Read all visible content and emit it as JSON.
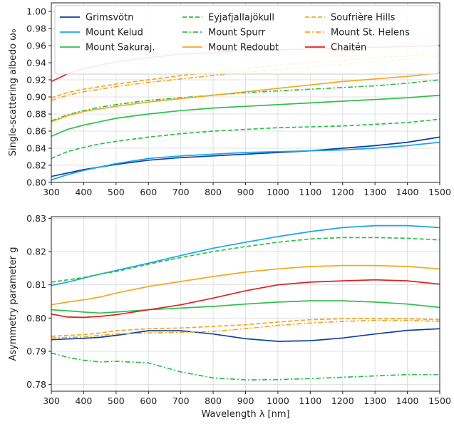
{
  "chart_data": [
    {
      "type": "line",
      "title": "",
      "xlabel": "",
      "ylabel": "Single-scattering albedo ω₀",
      "xlim": [
        300,
        1500
      ],
      "ylim": [
        0.8,
        1.01
      ],
      "xticks": [
        "300",
        "400",
        "500",
        "600",
        "700",
        "800",
        "900",
        "1000",
        "1100",
        "1200",
        "1300",
        "1400",
        "1500"
      ],
      "yticks": [
        "0.80",
        "0.82",
        "0.84",
        "0.86",
        "0.88",
        "0.90",
        "0.92",
        "0.94",
        "0.96",
        "0.98",
        "1.00"
      ],
      "grid": true,
      "legend": {
        "placement": "top",
        "columns": 3
      },
      "x": [
        300,
        350,
        400,
        450,
        500,
        600,
        700,
        800,
        900,
        1000,
        1100,
        1200,
        1300,
        1400,
        1500
      ],
      "series": [
        {
          "name": "Grimsvötn",
          "color": "#0b3ea6",
          "dash": "solid",
          "values": [
            0.807,
            0.811,
            0.815,
            0.818,
            0.821,
            0.826,
            0.829,
            0.831,
            0.833,
            0.835,
            0.837,
            0.84,
            0.843,
            0.847,
            0.853
          ]
        },
        {
          "name": "Mount Kelud",
          "color": "#1aa6e6",
          "dash": "solid",
          "values": [
            0.803,
            0.809,
            0.814,
            0.818,
            0.822,
            0.828,
            0.831,
            0.833,
            0.835,
            0.836,
            0.837,
            0.838,
            0.84,
            0.843,
            0.847
          ]
        },
        {
          "name": "Mount Sakuraj.",
          "color": "#2cbf4a",
          "dash": "solid",
          "values": [
            0.854,
            0.862,
            0.867,
            0.871,
            0.875,
            0.88,
            0.884,
            0.887,
            0.889,
            0.891,
            0.893,
            0.895,
            0.897,
            0.899,
            0.902
          ]
        },
        {
          "name": "Eyjafjallajökull",
          "color": "#2cbf4a",
          "dash": "dashed",
          "values": [
            0.828,
            0.836,
            0.841,
            0.845,
            0.848,
            0.853,
            0.857,
            0.86,
            0.862,
            0.864,
            0.865,
            0.866,
            0.868,
            0.87,
            0.874
          ]
        },
        {
          "name": "Mount Spurr",
          "color": "#2cbf4a",
          "dash": "dashdot",
          "values": [
            0.872,
            0.879,
            0.884,
            0.888,
            0.891,
            0.896,
            0.899,
            0.902,
            0.905,
            0.907,
            0.909,
            0.911,
            0.913,
            0.916,
            0.92
          ]
        },
        {
          "name": "Mount Redoubt",
          "color": "#f4a81d",
          "dash": "solid",
          "values": [
            0.871,
            0.878,
            0.883,
            0.886,
            0.889,
            0.894,
            0.898,
            0.902,
            0.906,
            0.91,
            0.914,
            0.918,
            0.921,
            0.924,
            0.928
          ]
        },
        {
          "name": "Soufrière Hills",
          "color": "#f4a81d",
          "dash": "dashed",
          "values": [
            0.899,
            0.905,
            0.909,
            0.912,
            0.915,
            0.92,
            0.925,
            0.929,
            0.933,
            0.937,
            0.94,
            0.943,
            0.946,
            0.948,
            0.951
          ]
        },
        {
          "name": "Mount St. Helens",
          "color": "#f4a81d",
          "dash": "dashdot",
          "values": [
            0.896,
            0.902,
            0.906,
            0.909,
            0.912,
            0.917,
            0.921,
            0.925,
            0.929,
            0.932,
            0.935,
            0.938,
            0.941,
            0.944,
            0.947
          ]
        },
        {
          "name": "Chaitén",
          "color": "#e02020",
          "dash": "solid",
          "values": [
            0.918,
            0.927,
            0.933,
            0.937,
            0.941,
            0.946,
            0.95,
            0.952,
            0.954,
            0.955,
            0.956,
            0.957,
            0.958,
            0.959,
            0.96
          ]
        }
      ]
    },
    {
      "type": "line",
      "title": "",
      "xlabel": "Wavelength λ [nm]",
      "ylabel": "Asymmetry parameter g",
      "xlim": [
        300,
        1500
      ],
      "ylim": [
        0.778,
        0.8305
      ],
      "xticks": [
        "300",
        "400",
        "500",
        "600",
        "700",
        "800",
        "900",
        "1000",
        "1100",
        "1200",
        "1300",
        "1400",
        "1500"
      ],
      "yticks": [
        "0.78",
        "0.79",
        "0.80",
        "0.81",
        "0.82",
        "0.83"
      ],
      "grid": true,
      "x": [
        300,
        350,
        400,
        450,
        500,
        600,
        700,
        800,
        900,
        1000,
        1100,
        1200,
        1300,
        1400,
        1500
      ],
      "series": [
        {
          "name": "Grimsvötn",
          "color": "#0b3ea6",
          "dash": "solid",
          "values": [
            0.7935,
            0.7937,
            0.7939,
            0.7942,
            0.7948,
            0.7962,
            0.7962,
            0.7952,
            0.7938,
            0.793,
            0.7932,
            0.794,
            0.7952,
            0.7963,
            0.7968
          ]
        },
        {
          "name": "Mount Kelud",
          "color": "#1aa6e6",
          "dash": "solid",
          "values": [
            0.8098,
            0.8108,
            0.812,
            0.8132,
            0.8143,
            0.8165,
            0.8188,
            0.821,
            0.8228,
            0.8245,
            0.826,
            0.8272,
            0.8278,
            0.8278,
            0.8272
          ]
        },
        {
          "name": "Mount Sakuraj.",
          "color": "#2cbf4a",
          "dash": "solid",
          "values": [
            0.8025,
            0.8022,
            0.8018,
            0.8015,
            0.8018,
            0.8025,
            0.803,
            0.8035,
            0.8042,
            0.8048,
            0.8052,
            0.8052,
            0.8048,
            0.8042,
            0.8032
          ]
        },
        {
          "name": "Eyjafjallajökull",
          "color": "#2cbf4a",
          "dash": "dashed",
          "values": [
            0.8108,
            0.8115,
            0.8122,
            0.8132,
            0.814,
            0.8162,
            0.8182,
            0.82,
            0.8215,
            0.8228,
            0.8238,
            0.8242,
            0.8242,
            0.824,
            0.8235
          ]
        },
        {
          "name": "Mount Spurr",
          "color": "#2cbf4a",
          "dash": "dashdot",
          "values": [
            0.7895,
            0.7882,
            0.7873,
            0.7868,
            0.787,
            0.7865,
            0.7838,
            0.782,
            0.7814,
            0.7815,
            0.7818,
            0.7822,
            0.7826,
            0.783,
            0.783
          ]
        },
        {
          "name": "Mount Redoubt",
          "color": "#f4a81d",
          "dash": "solid",
          "values": [
            0.804,
            0.8048,
            0.8055,
            0.8063,
            0.8075,
            0.8095,
            0.811,
            0.8125,
            0.8138,
            0.8148,
            0.8155,
            0.8158,
            0.8158,
            0.8155,
            0.8148
          ]
        },
        {
          "name": "Soufrière Hills",
          "color": "#f4a81d",
          "dash": "dashed",
          "values": [
            0.7945,
            0.7948,
            0.795,
            0.7955,
            0.7962,
            0.7968,
            0.797,
            0.7975,
            0.798,
            0.7988,
            0.7995,
            0.7998,
            0.7998,
            0.7998,
            0.7995
          ]
        },
        {
          "name": "Mount St. Helens",
          "color": "#f4a81d",
          "dash": "dashdot",
          "values": [
            0.794,
            0.7942,
            0.7943,
            0.7948,
            0.7952,
            0.7955,
            0.7957,
            0.796,
            0.7968,
            0.7978,
            0.7985,
            0.799,
            0.7993,
            0.7993,
            0.799
          ]
        },
        {
          "name": "Chaitén",
          "color": "#e02020",
          "dash": "solid",
          "values": [
            0.8012,
            0.8003,
            0.8002,
            0.8005,
            0.801,
            0.8025,
            0.804,
            0.806,
            0.8082,
            0.81,
            0.8108,
            0.8112,
            0.8115,
            0.8112,
            0.8102
          ]
        }
      ]
    }
  ]
}
